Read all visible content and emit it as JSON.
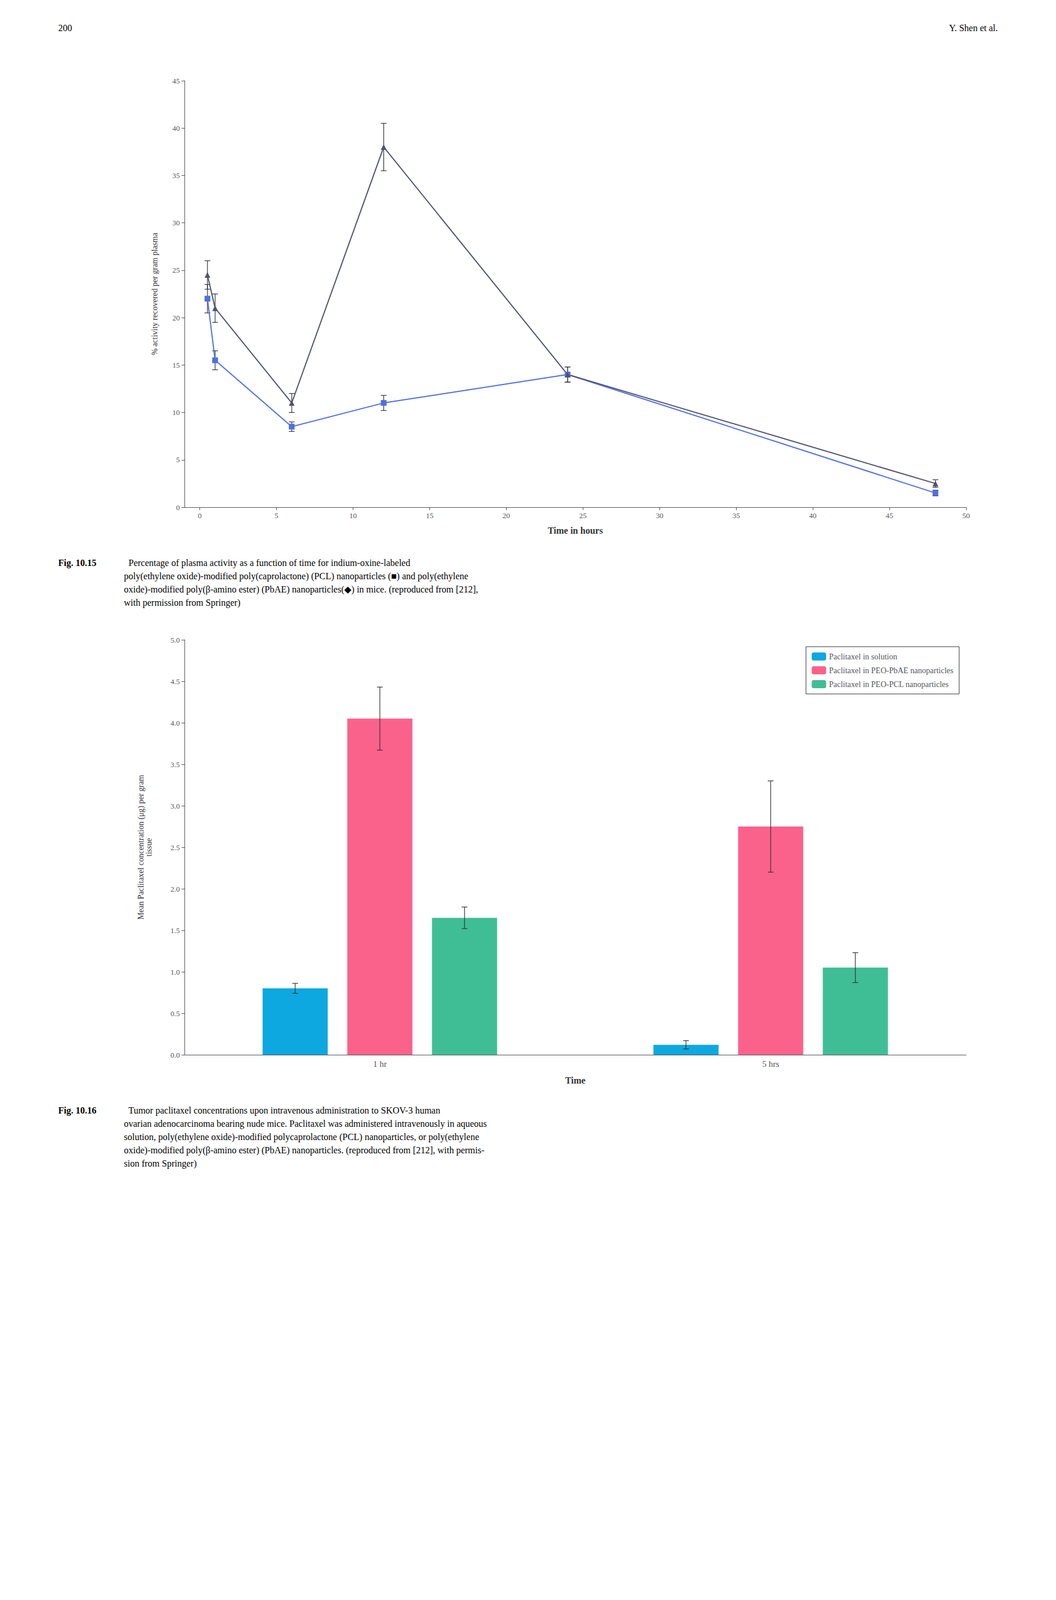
{
  "chart_data": [
    {
      "type": "line",
      "xlabel": "Time in hours",
      "ylabel": "% activity recovered per gram plasma",
      "annotations": [
        "200",
        "Y. Shen et al."
      ],
      "caption": [
        "Fig. 10.15",
        "  Percentage of plasma activity as a function of time for indium-oxine-labeled\npoly(ethylene oxide)-modified poly(caprolactone) (PCL) nanoparticles (■) and poly(ethylene\noxide)-modified poly(β-amino ester) (PbAE) nanoparticles(◆) in mice. (reproduced from [212],\nwith permission from Springer)"
      ],
      "x": [
        0.5,
        1,
        6,
        12,
        24,
        48
      ],
      "series": [
        {
          "values": [
            22.0,
            15.5,
            8.5,
            11.0,
            14.0,
            1.5
          ],
          "yerr": [
            1.5,
            1.0,
            0.5,
            0.8,
            0.8,
            0.3
          ],
          "marker": "square"
        },
        {
          "values": [
            24.5,
            21.0,
            11.0,
            38.0,
            14.0,
            2.5
          ],
          "yerr": [
            1.5,
            1.5,
            1.0,
            2.5,
            0.8,
            0.4
          ],
          "marker": "triangle"
        }
      ],
      "xlim": [
        -1,
        50
      ],
      "ylim": [
        0,
        45
      ],
      "xticks": [
        0,
        5,
        10,
        15,
        20,
        25,
        30,
        35,
        40,
        45,
        50
      ],
      "yticks": [
        0,
        5,
        10,
        15,
        20,
        25,
        30,
        35,
        40,
        45
      ],
      "grid": false
    },
    {
      "type": "bar",
      "xlabel": "Time",
      "ylabel": "Mean Paclitaxel concentration (μg) per gram\ntissue",
      "caption": [
        "Fig. 10.16",
        "  Tumor paclitaxel concentrations upon intravenous administration to SKOV-3 human\novarian adenocarcinoma bearing nude mice. Paclitaxel was administered intravenously in aqueous\nsolution, poly(ethylene oxide)-modified polycaprolactone (PCL) nanoparticles, or poly(ethylene\noxide)-modified poly(β-amino ester) (PbAE) nanoparticles. (reproduced from [212], with permis-\nsion from Springer)"
      ],
      "categories": [
        "1 hr",
        "5 hrs"
      ],
      "series": [
        {
          "name": "Paclitaxel in solution",
          "values": [
            0.8,
            0.12
          ],
          "yerr": [
            0.06,
            0.05
          ]
        },
        {
          "name": "Paclitaxel in PEO-PbAE nanoparticles",
          "values": [
            4.05,
            2.75
          ],
          "yerr": [
            0.38,
            0.55
          ]
        },
        {
          "name": "Paclitaxel in PEO-PCL nanoparticles",
          "values": [
            1.65,
            1.05
          ],
          "yerr": [
            0.13,
            0.18
          ]
        }
      ],
      "ylim": [
        0,
        5
      ],
      "yticks": [
        {
          "value": 0,
          "label": "0.0"
        },
        0.5,
        {
          "value": 1,
          "label": "1.0"
        },
        1.5,
        {
          "value": 2,
          "label": "2.0"
        },
        2.5,
        {
          "value": 3,
          "label": "3.0"
        },
        3.5,
        {
          "value": 4,
          "label": "4.0"
        },
        4.5,
        {
          "value": 5,
          "label": "5.0"
        }
      ],
      "legend": "upper right",
      "grid": false
    }
  ]
}
